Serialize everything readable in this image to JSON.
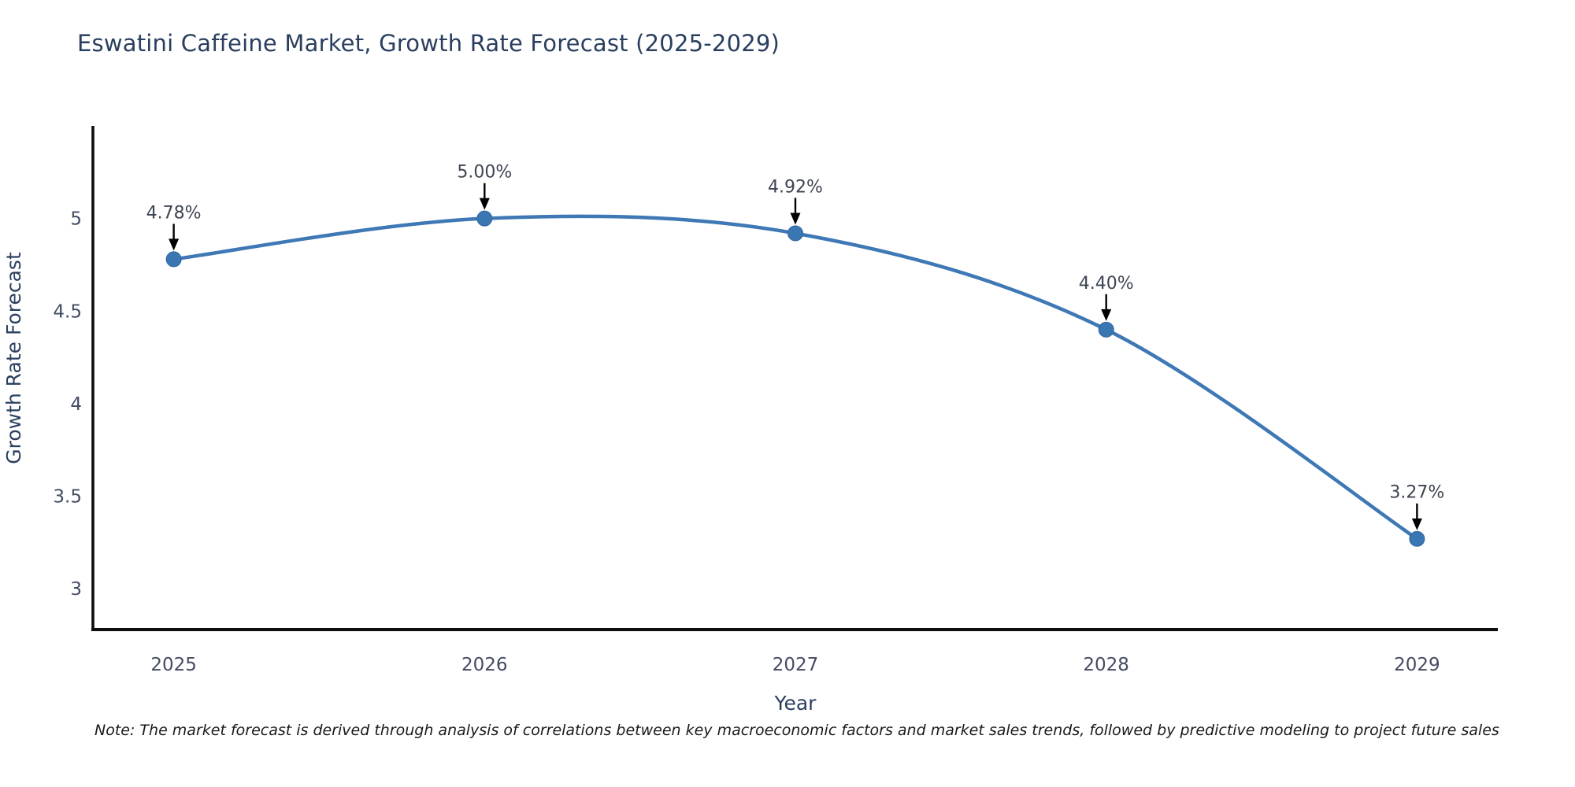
{
  "title": "Eswatini Caffeine Market, Growth Rate Forecast (2025-2029)",
  "note": "Note: The market forecast is derived through analysis of correlations between key macroeconomic factors and market sales trends, followed by predictive modeling to project future sales",
  "chart_data": {
    "type": "line",
    "title": "Eswatini Caffeine Market, Growth Rate Forecast (2025-2029)",
    "xlabel": "Year",
    "ylabel": "Growth Rate Forecast",
    "x": [
      2025,
      2026,
      2027,
      2028,
      2029
    ],
    "series": [
      {
        "name": "Growth Rate Forecast",
        "values": [
          4.78,
          5.0,
          4.92,
          4.4,
          3.27
        ]
      }
    ],
    "point_labels": [
      "4.78%",
      "5.00%",
      "4.92%",
      "4.40%",
      "3.27%"
    ],
    "xticks": [
      "2025",
      "2026",
      "2027",
      "2028",
      "2029"
    ],
    "xtick_values": [
      2025,
      2026,
      2027,
      2028,
      2029
    ],
    "yticks": [
      "3",
      "3.5",
      "4",
      "4.5",
      "5"
    ],
    "ytick_values": [
      3,
      3.5,
      4,
      4.5,
      5
    ],
    "xlim": [
      2024.74,
      2029.26
    ],
    "ylim": [
      2.78,
      5.5
    ],
    "grid": false,
    "legend_position": "none",
    "line_shape": "spline",
    "annotation_style": "value-label-with-down-arrow",
    "colors": {
      "line": "#3e78b5",
      "marker_fill": "#3a76b2",
      "marker_edge": "#2f66a0",
      "annotation_arrow": "#000000",
      "annotation_text": "#3e4452",
      "title_text": "#2a3f5f",
      "tick_text": "#444c63",
      "axis_line": "#0d0d0d",
      "note_text": "#1a1a1a",
      "background": "#ffffff"
    }
  }
}
